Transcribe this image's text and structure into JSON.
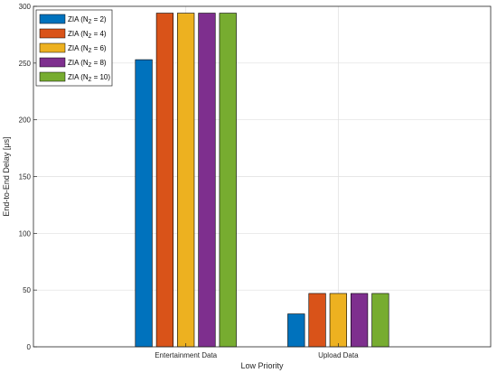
{
  "chart_data": {
    "type": "bar",
    "categories": [
      "Entertainment Data",
      "Upload Data"
    ],
    "series": [
      {
        "name": "ZIA (N",
        "name_sub": "Z",
        "name_tail": " = 2)",
        "color": "#0072BD",
        "values": [
          253,
          29
        ]
      },
      {
        "name": "ZIA (N",
        "name_sub": "Z",
        "name_tail": " = 4)",
        "color": "#D95319",
        "values": [
          294,
          47
        ]
      },
      {
        "name": "ZIA (N",
        "name_sub": "Z",
        "name_tail": " = 6)",
        "color": "#EDB120",
        "values": [
          294,
          47
        ]
      },
      {
        "name": "ZIA (N",
        "name_sub": "Z",
        "name_tail": " = 8)",
        "color": "#7E2F8E",
        "values": [
          294,
          47
        ]
      },
      {
        "name": "ZIA (N",
        "name_sub": "Z",
        "name_tail": " = 10)",
        "color": "#77AC30",
        "values": [
          294,
          47
        ]
      }
    ],
    "xlabel": "Low Priority",
    "ylabel": "End-to-End Delay [μs]",
    "ylim": [
      0,
      300
    ],
    "yticks": [
      0,
      50,
      100,
      150,
      200,
      250,
      300
    ],
    "grid": true,
    "legend_position": "top-left"
  }
}
